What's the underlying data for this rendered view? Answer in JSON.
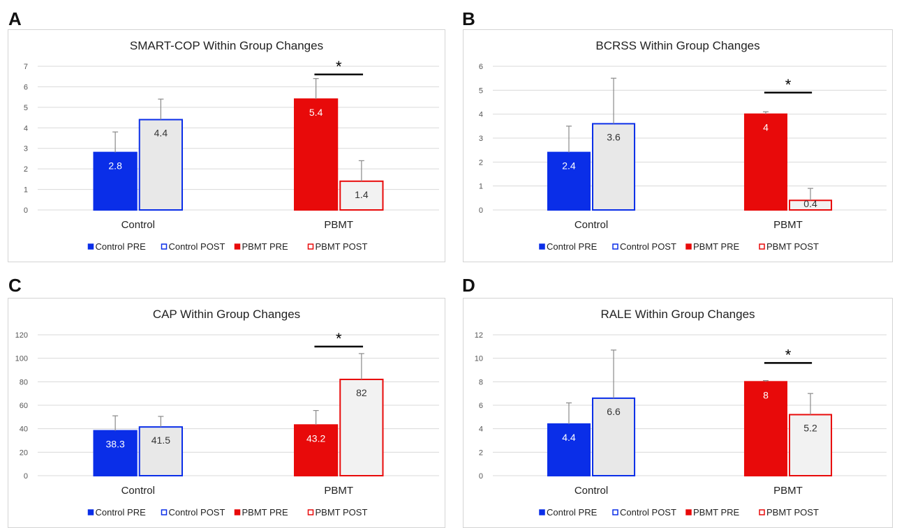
{
  "panel_letters": [
    "A",
    "B",
    "C",
    "D"
  ],
  "legend": [
    "Control PRE",
    "Control POST",
    "PBMT PRE",
    "PBMT POST"
  ],
  "colors": {
    "control_pre_fill": "#0a2ee8",
    "control_post_fill": "#e8e8e8",
    "control_post_edge": "#0a2ee8",
    "pbmt_pre_fill": "#e80a0a",
    "pbmt_post_fill": "#f2f2f2",
    "pbmt_post_edge": "#e80a0a",
    "grid": "#d9d9d9",
    "error_bar": "#8a8a8a"
  },
  "significance_marker": "*",
  "chart_data": [
    {
      "type": "bar",
      "title": "SMART-COP Within Group Changes",
      "categories": [
        "Control",
        "PBMT"
      ],
      "ylim": [
        0,
        7
      ],
      "yticks": [
        0,
        1,
        2,
        3,
        4,
        5,
        6,
        7
      ],
      "grid": true,
      "legend_position": "bottom",
      "series": [
        {
          "name": "Control PRE",
          "values": [
            2.8,
            null
          ],
          "error": [
            1.0,
            null
          ],
          "labels": [
            "2.8",
            ""
          ]
        },
        {
          "name": "Control POST",
          "values": [
            4.4,
            null
          ],
          "error": [
            1.0,
            null
          ],
          "labels": [
            "4.4",
            ""
          ]
        },
        {
          "name": "PBMT PRE",
          "values": [
            null,
            5.4
          ],
          "error": [
            null,
            1.0
          ],
          "labels": [
            "",
            "5.4"
          ]
        },
        {
          "name": "PBMT POST",
          "values": [
            null,
            1.4
          ],
          "error": [
            null,
            1.0
          ],
          "labels": [
            "",
            "1.4"
          ]
        }
      ],
      "significance": {
        "category": "PBMT",
        "y": 6.6
      }
    },
    {
      "type": "bar",
      "title": "BCRSS Within Group Changes",
      "categories": [
        "Control",
        "PBMT"
      ],
      "ylim": [
        0,
        6
      ],
      "yticks": [
        0,
        1,
        2,
        3,
        4,
        5,
        6
      ],
      "grid": true,
      "legend_position": "bottom",
      "series": [
        {
          "name": "Control PRE",
          "values": [
            2.4,
            null
          ],
          "error": [
            1.1,
            null
          ],
          "labels": [
            "2.4",
            ""
          ]
        },
        {
          "name": "Control POST",
          "values": [
            3.6,
            null
          ],
          "error": [
            1.9,
            null
          ],
          "labels": [
            "3.6",
            ""
          ]
        },
        {
          "name": "PBMT PRE",
          "values": [
            null,
            4.0
          ],
          "error": [
            null,
            0.1
          ],
          "labels": [
            "",
            "4"
          ]
        },
        {
          "name": "PBMT POST",
          "values": [
            null,
            0.4
          ],
          "error": [
            null,
            0.5
          ],
          "labels": [
            "",
            "0.4"
          ]
        }
      ],
      "significance": {
        "category": "PBMT",
        "y": 4.9
      }
    },
    {
      "type": "bar",
      "title": "CAP Within Group Changes",
      "categories": [
        "Control",
        "PBMT"
      ],
      "ylim": [
        0,
        120
      ],
      "yticks": [
        0,
        20,
        40,
        60,
        80,
        100,
        120
      ],
      "grid": true,
      "legend_position": "bottom",
      "series": [
        {
          "name": "Control PRE",
          "values": [
            38.3,
            null
          ],
          "error": [
            12.7,
            null
          ],
          "labels": [
            "38.3",
            ""
          ]
        },
        {
          "name": "Control POST",
          "values": [
            41.5,
            null
          ],
          "error": [
            9.0,
            null
          ],
          "labels": [
            "41.5",
            ""
          ]
        },
        {
          "name": "PBMT PRE",
          "values": [
            null,
            43.2
          ],
          "error": [
            null,
            12.3
          ],
          "labels": [
            "",
            "43.2"
          ]
        },
        {
          "name": "PBMT POST",
          "values": [
            null,
            82.0
          ],
          "error": [
            null,
            22.0
          ],
          "labels": [
            "",
            "82"
          ]
        }
      ],
      "significance": {
        "category": "PBMT",
        "y": 110
      }
    },
    {
      "type": "bar",
      "title": "RALE Within Group Changes",
      "categories": [
        "Control",
        "PBMT"
      ],
      "ylim": [
        0,
        12
      ],
      "yticks": [
        0,
        2,
        4,
        6,
        8,
        10,
        12
      ],
      "grid": true,
      "legend_position": "bottom",
      "series": [
        {
          "name": "Control PRE",
          "values": [
            4.4,
            null
          ],
          "error": [
            1.8,
            null
          ],
          "labels": [
            "4.4",
            ""
          ]
        },
        {
          "name": "Control POST",
          "values": [
            6.6,
            null
          ],
          "error": [
            4.1,
            null
          ],
          "labels": [
            "6.6",
            ""
          ]
        },
        {
          "name": "PBMT PRE",
          "values": [
            null,
            8.0
          ],
          "error": [
            null,
            0.1
          ],
          "labels": [
            "",
            "8"
          ]
        },
        {
          "name": "PBMT POST",
          "values": [
            null,
            5.2
          ],
          "error": [
            null,
            1.8
          ],
          "labels": [
            "",
            "5.2"
          ]
        }
      ],
      "significance": {
        "category": "PBMT",
        "y": 9.6
      }
    }
  ]
}
